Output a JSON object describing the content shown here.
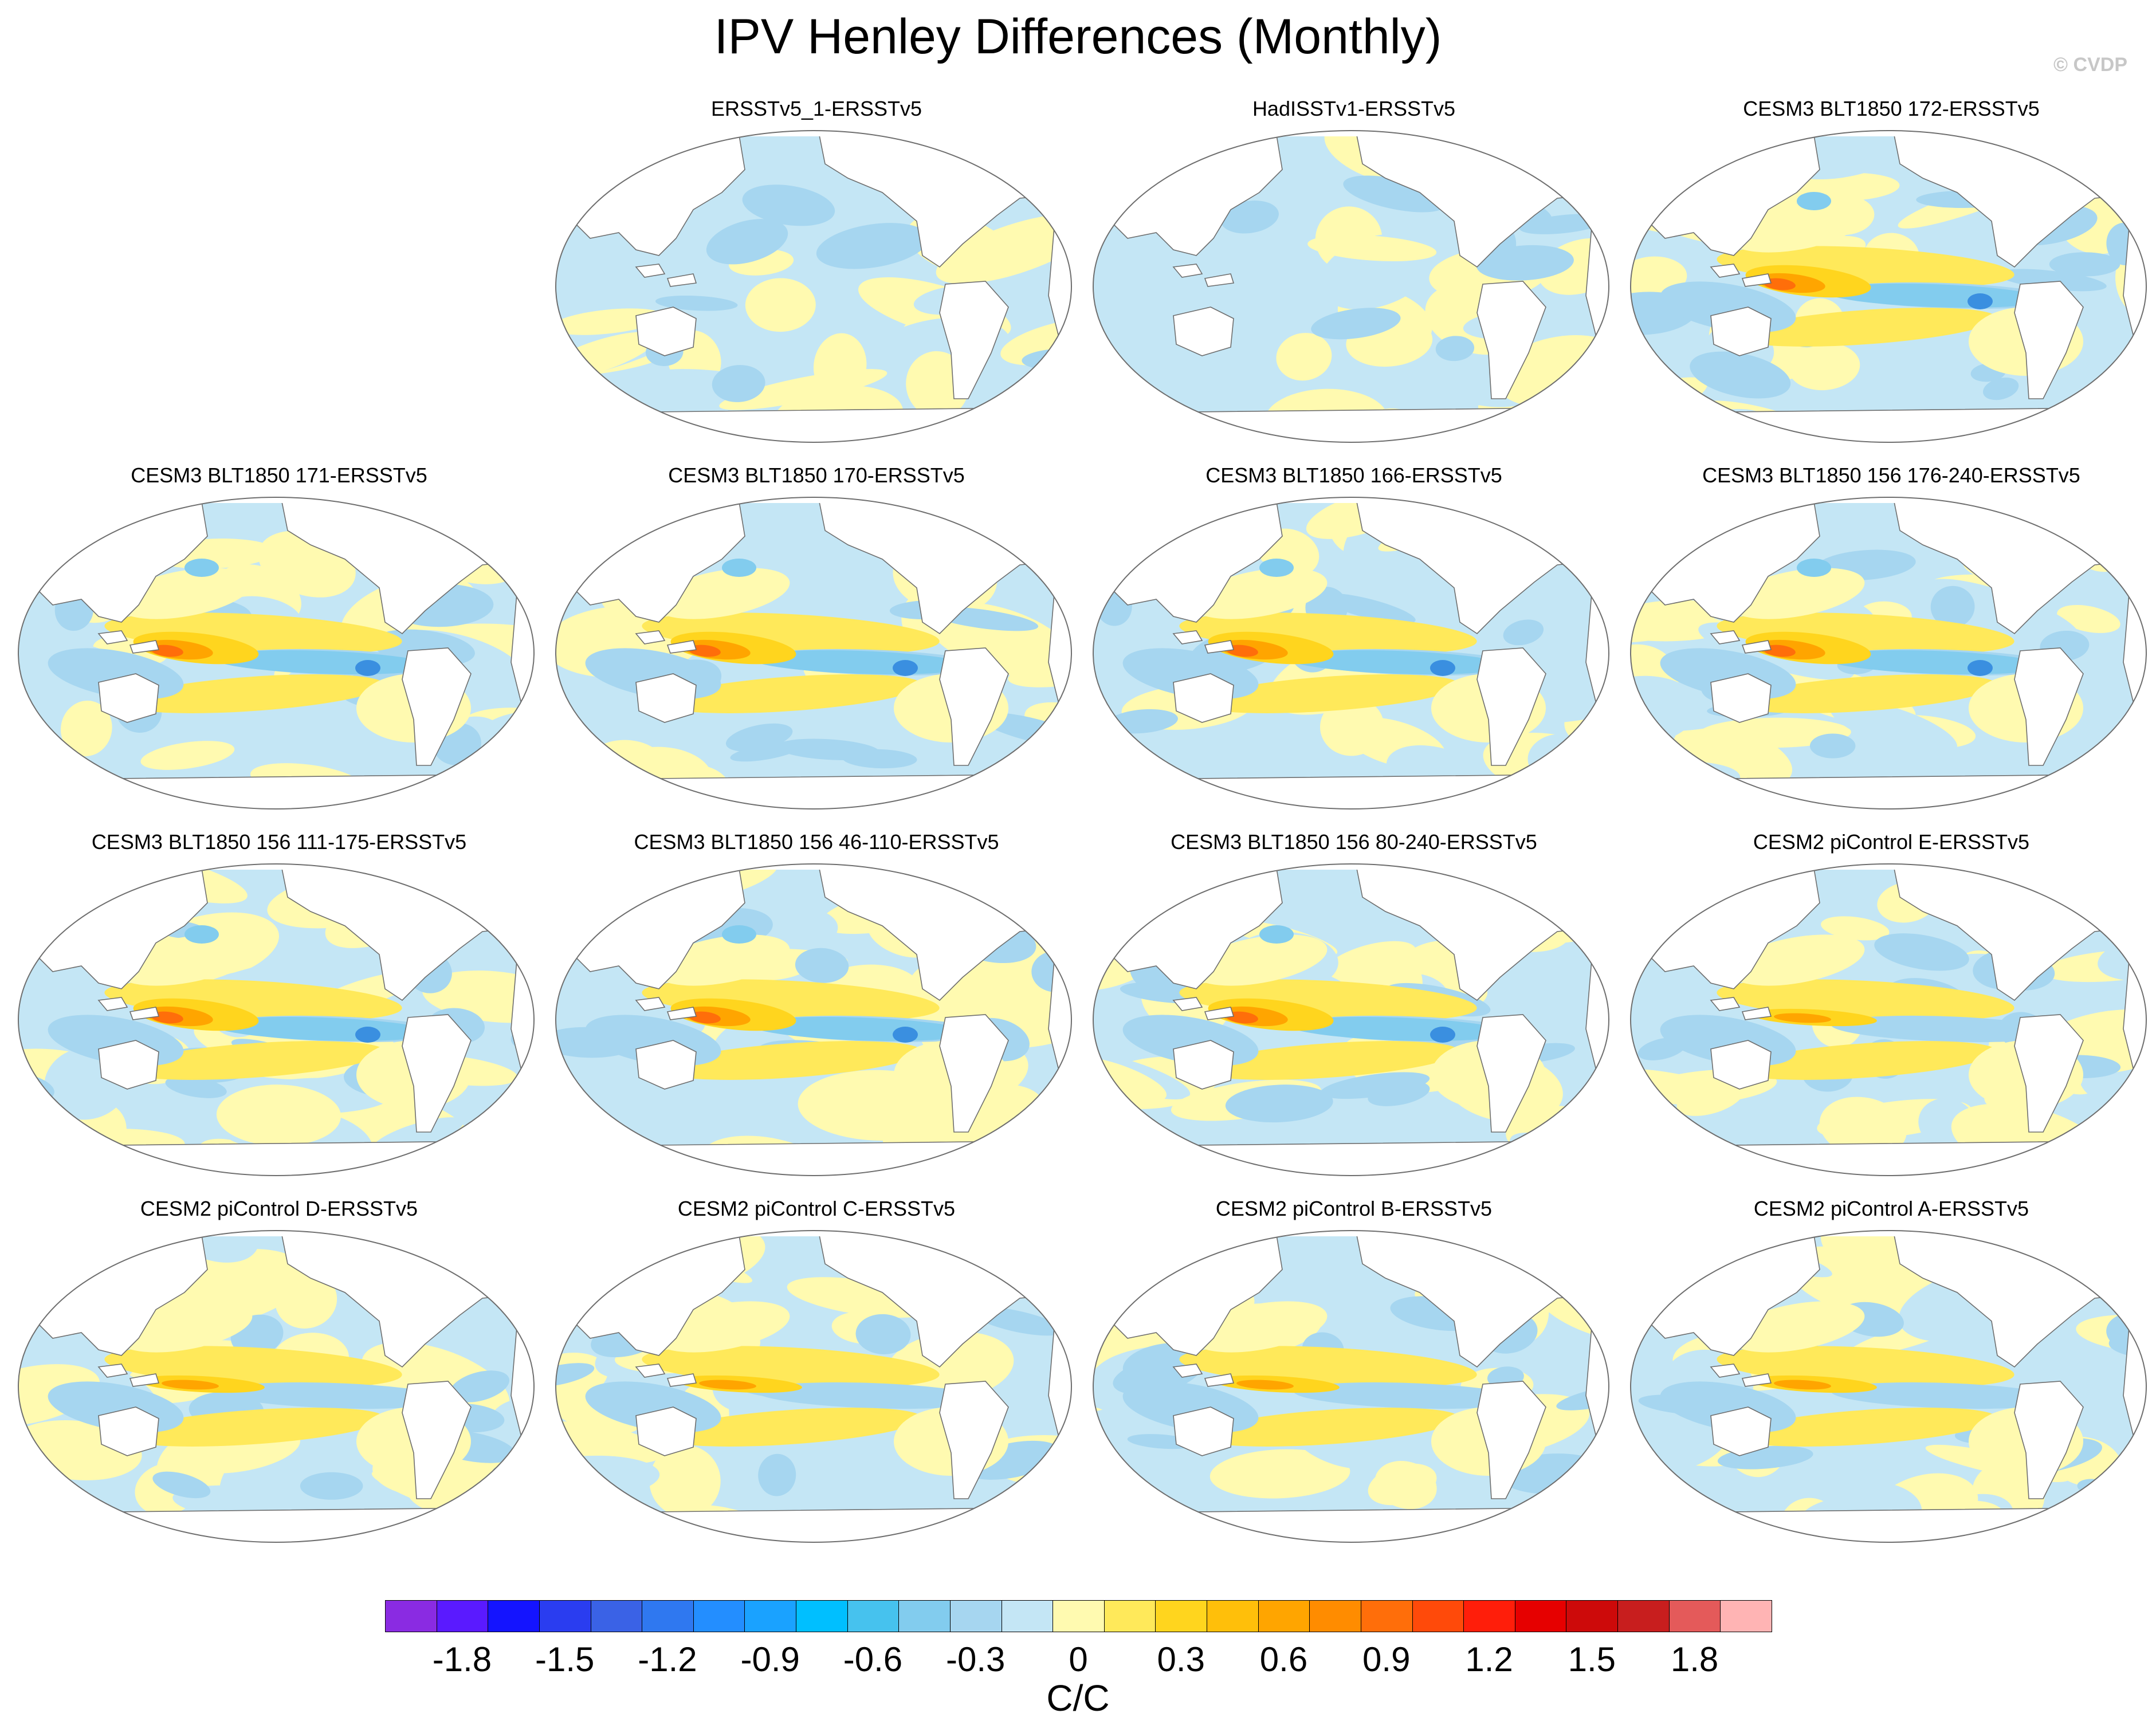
{
  "title": "IPV Henley Differences (Monthly)",
  "copyright": "© CVDP",
  "projection": "Robinson (Pacific-centered)",
  "panels": [
    {
      "title": "ERSSTv5_1-ERSSTv5",
      "pattern": "weak"
    },
    {
      "title": "HadISSTv1-ERSSTv5",
      "pattern": "weak"
    },
    {
      "title": "CESM3 BLT1850 172-ERSSTv5",
      "pattern": "strong"
    },
    {
      "title": "CESM3 BLT1850 171-ERSSTv5",
      "pattern": "strong"
    },
    {
      "title": "CESM3 BLT1850 170-ERSSTv5",
      "pattern": "strong"
    },
    {
      "title": "CESM3 BLT1850 166-ERSSTv5",
      "pattern": "strong"
    },
    {
      "title": "CESM3 BLT1850 156 176-240-ERSSTv5",
      "pattern": "strong"
    },
    {
      "title": "CESM3 BLT1850 156 111-175-ERSSTv5",
      "pattern": "strong"
    },
    {
      "title": "CESM3 BLT1850 156 46-110-ERSSTv5",
      "pattern": "strong"
    },
    {
      "title": "CESM3 BLT1850 156 80-240-ERSSTv5",
      "pattern": "strong"
    },
    {
      "title": "CESM2 piControl E-ERSSTv5",
      "pattern": "moderate"
    },
    {
      "title": "CESM2 piControl D-ERSSTv5",
      "pattern": "moderate"
    },
    {
      "title": "CESM2 piControl C-ERSSTv5",
      "pattern": "moderate"
    },
    {
      "title": "CESM2 piControl B-ERSSTv5",
      "pattern": "moderate"
    },
    {
      "title": "CESM2 piControl A-ERSSTv5",
      "pattern": "moderate"
    }
  ],
  "colorbar": {
    "colors": [
      "#8a2be2",
      "#5a1aff",
      "#1414ff",
      "#2a3df0",
      "#3a62e6",
      "#2f78f0",
      "#238eff",
      "#1aa2ff",
      "#00bfff",
      "#46c2ee",
      "#82ccee",
      "#a6d6f0",
      "#c4e6f5",
      "#fffab0",
      "#ffe95a",
      "#ffd51e",
      "#ffbf0a",
      "#ffa500",
      "#ff8c00",
      "#ff6e0a",
      "#ff4a0a",
      "#ff1e0a",
      "#e60000",
      "#cd0a0a",
      "#c81e1e",
      "#e45a5a",
      "#ffb4b4"
    ],
    "tick_labels": [
      "-1.8",
      "-1.5",
      "-1.2",
      "-0.9",
      "-0.6",
      "-0.3",
      "0",
      "0.3",
      "0.6",
      "0.9",
      "1.2",
      "1.5",
      "1.8"
    ],
    "units": "C/C"
  }
}
